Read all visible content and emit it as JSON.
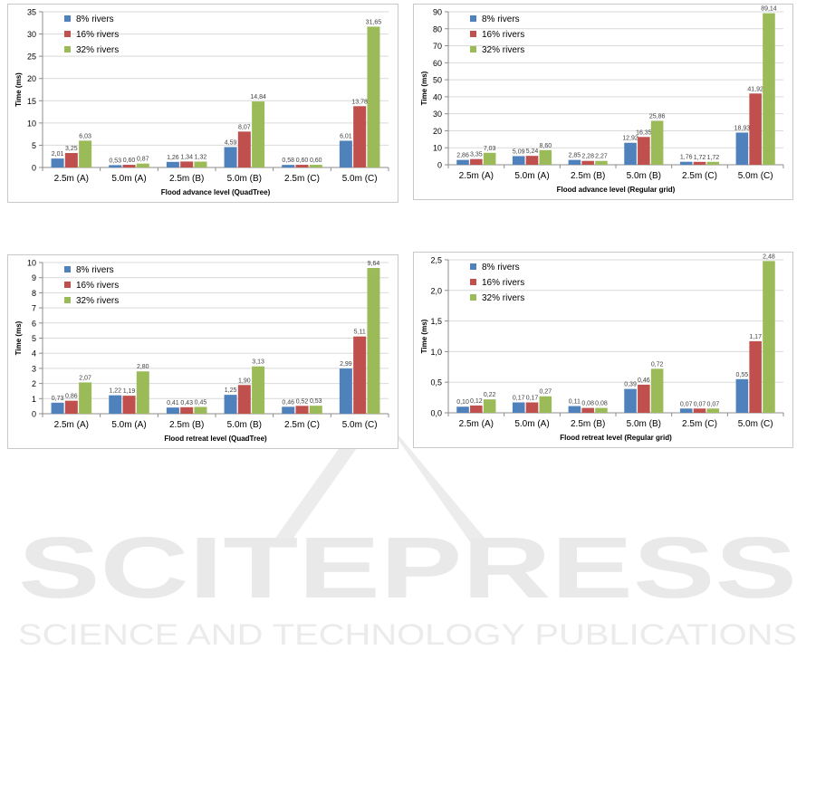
{
  "watermark": {
    "brand": "SCITEPRESS",
    "tagline": "SCIENCE AND TECHNOLOGY PUBLICATIONS"
  },
  "colors": {
    "series_8": "#4f81bd",
    "series_16": "#c0504d",
    "series_32": "#9bbb59",
    "grid": "#d9d9d9",
    "axis": "#8c8c8c",
    "text": "#000000",
    "watermark": "#e6e6e6"
  },
  "chart_data": [
    {
      "type": "bar",
      "categories": [
        "2.5m (A)",
        "5.0m (A)",
        "2.5m (B)",
        "5.0m (B)",
        "2.5m (C)",
        "5.0m (C)"
      ],
      "series": [
        {
          "name": "8% rivers",
          "values": [
            2.01,
            0.53,
            1.26,
            4.59,
            0.58,
            6.01
          ],
          "labels": [
            "2,01",
            "0,53",
            "1,26",
            "4,59",
            "0,58",
            "6,01"
          ]
        },
        {
          "name": "16% rivers",
          "values": [
            3.25,
            0.6,
            1.34,
            8.07,
            0.6,
            13.78
          ],
          "labels": [
            "3,25",
            "0,60",
            "1,34",
            "8,07",
            "0,60",
            "13,78"
          ]
        },
        {
          "name": "32% rivers",
          "values": [
            6.03,
            0.87,
            1.32,
            14.84,
            0.6,
            31.65
          ],
          "labels": [
            "6,03",
            "0,87",
            "1,32",
            "14,84",
            "0,60",
            "31,65"
          ]
        }
      ],
      "xlabel": "Flood advance level (QuadTree)",
      "ylabel": "Time (ms)",
      "ylim": [
        0,
        35
      ],
      "yticks": [
        "0",
        "5",
        "10",
        "15",
        "20",
        "25",
        "30",
        "35"
      ],
      "ytick_values": [
        0,
        5,
        10,
        15,
        20,
        25,
        30,
        35
      ],
      "grid": true,
      "legend": "top-left"
    },
    {
      "type": "bar",
      "categories": [
        "2.5m (A)",
        "5.0m (A)",
        "2.5m (B)",
        "5.0m (B)",
        "2.5m (C)",
        "5.0m (C)"
      ],
      "series": [
        {
          "name": "8% rivers",
          "values": [
            2.86,
            5.09,
            2.85,
            12.92,
            1.76,
            18.93
          ],
          "labels": [
            "2,86",
            "5,09",
            "2,85",
            "12,92",
            "1,76",
            "18,93"
          ]
        },
        {
          "name": "16% rivers",
          "values": [
            3.35,
            5.24,
            2.28,
            16.35,
            1.72,
            41.92
          ],
          "labels": [
            "3,35",
            "5,24",
            "2,28",
            "16,35",
            "1,72",
            "41,92"
          ]
        },
        {
          "name": "32% rivers",
          "values": [
            7.03,
            8.6,
            2.27,
            25.86,
            1.72,
            89.14
          ],
          "labels": [
            "7,03",
            "8,60",
            "2,27",
            "25,86",
            "1,72",
            "89,14"
          ]
        }
      ],
      "xlabel": "Flood advance level (Regular grid)",
      "ylabel": "Time (ms)",
      "ylim": [
        0,
        90
      ],
      "yticks": [
        "0",
        "10",
        "20",
        "30",
        "40",
        "50",
        "60",
        "70",
        "80",
        "90"
      ],
      "ytick_values": [
        0,
        10,
        20,
        30,
        40,
        50,
        60,
        70,
        80,
        90
      ],
      "grid": true,
      "legend": "top-left"
    },
    {
      "type": "bar",
      "categories": [
        "2.5m (A)",
        "5.0m (A)",
        "2.5m (B)",
        "5.0m (B)",
        "2.5m (C)",
        "5.0m (C)"
      ],
      "series": [
        {
          "name": "8% rivers",
          "values": [
            0.73,
            1.22,
            0.41,
            1.25,
            0.46,
            2.99
          ],
          "labels": [
            "0,73",
            "1,22",
            "0,41",
            "1,25",
            "0,46",
            "2,99"
          ]
        },
        {
          "name": "16% rivers",
          "values": [
            0.86,
            1.19,
            0.43,
            1.9,
            0.52,
            5.11
          ],
          "labels": [
            "0,86",
            "1,19",
            "0,43",
            "1,90",
            "0,52",
            "5,11"
          ]
        },
        {
          "name": "32% rivers",
          "values": [
            2.07,
            2.8,
            0.45,
            3.13,
            0.53,
            9.64
          ],
          "labels": [
            "2,07",
            "2,80",
            "0,45",
            "3,13",
            "0,53",
            "9,64"
          ]
        }
      ],
      "xlabel": "Flood retreat level (QuadTree)",
      "ylabel": "Time (ms)",
      "ylim": [
        0,
        10
      ],
      "yticks": [
        "0",
        "1",
        "2",
        "3",
        "4",
        "5",
        "6",
        "7",
        "8",
        "9",
        "10"
      ],
      "ytick_values": [
        0,
        1,
        2,
        3,
        4,
        5,
        6,
        7,
        8,
        9,
        10
      ],
      "grid": true,
      "legend": "top-left"
    },
    {
      "type": "bar",
      "categories": [
        "2.5m (A)",
        "5.0m (A)",
        "2.5m (B)",
        "5.0m (B)",
        "2.5m (C)",
        "5.0m (C)"
      ],
      "series": [
        {
          "name": "8% rivers",
          "values": [
            0.1,
            0.17,
            0.11,
            0.39,
            0.07,
            0.55
          ],
          "labels": [
            "0,10",
            "0,17",
            "0,11",
            "0,39",
            "0,07",
            "0,55"
          ]
        },
        {
          "name": "16% rivers",
          "values": [
            0.12,
            0.17,
            0.08,
            0.46,
            0.07,
            1.17
          ],
          "labels": [
            "0,12",
            "0,17",
            "0,08",
            "0,46",
            "0,07",
            "1,17"
          ]
        },
        {
          "name": "32% rivers",
          "values": [
            0.22,
            0.27,
            0.08,
            0.72,
            0.07,
            2.48
          ],
          "labels": [
            "0,22",
            "0,27",
            "0,08",
            "0,72",
            "0,07",
            "2,48"
          ]
        }
      ],
      "xlabel": "Flood retreat level (Regular grid)",
      "ylabel": "Time (ms)",
      "ylim": [
        0,
        2.5
      ],
      "yticks": [
        "0,0",
        "0,5",
        "1,0",
        "1,5",
        "2,0",
        "2,5"
      ],
      "ytick_values": [
        0,
        0.5,
        1,
        1.5,
        2,
        2.5
      ],
      "grid": true,
      "legend": "top-left"
    }
  ]
}
